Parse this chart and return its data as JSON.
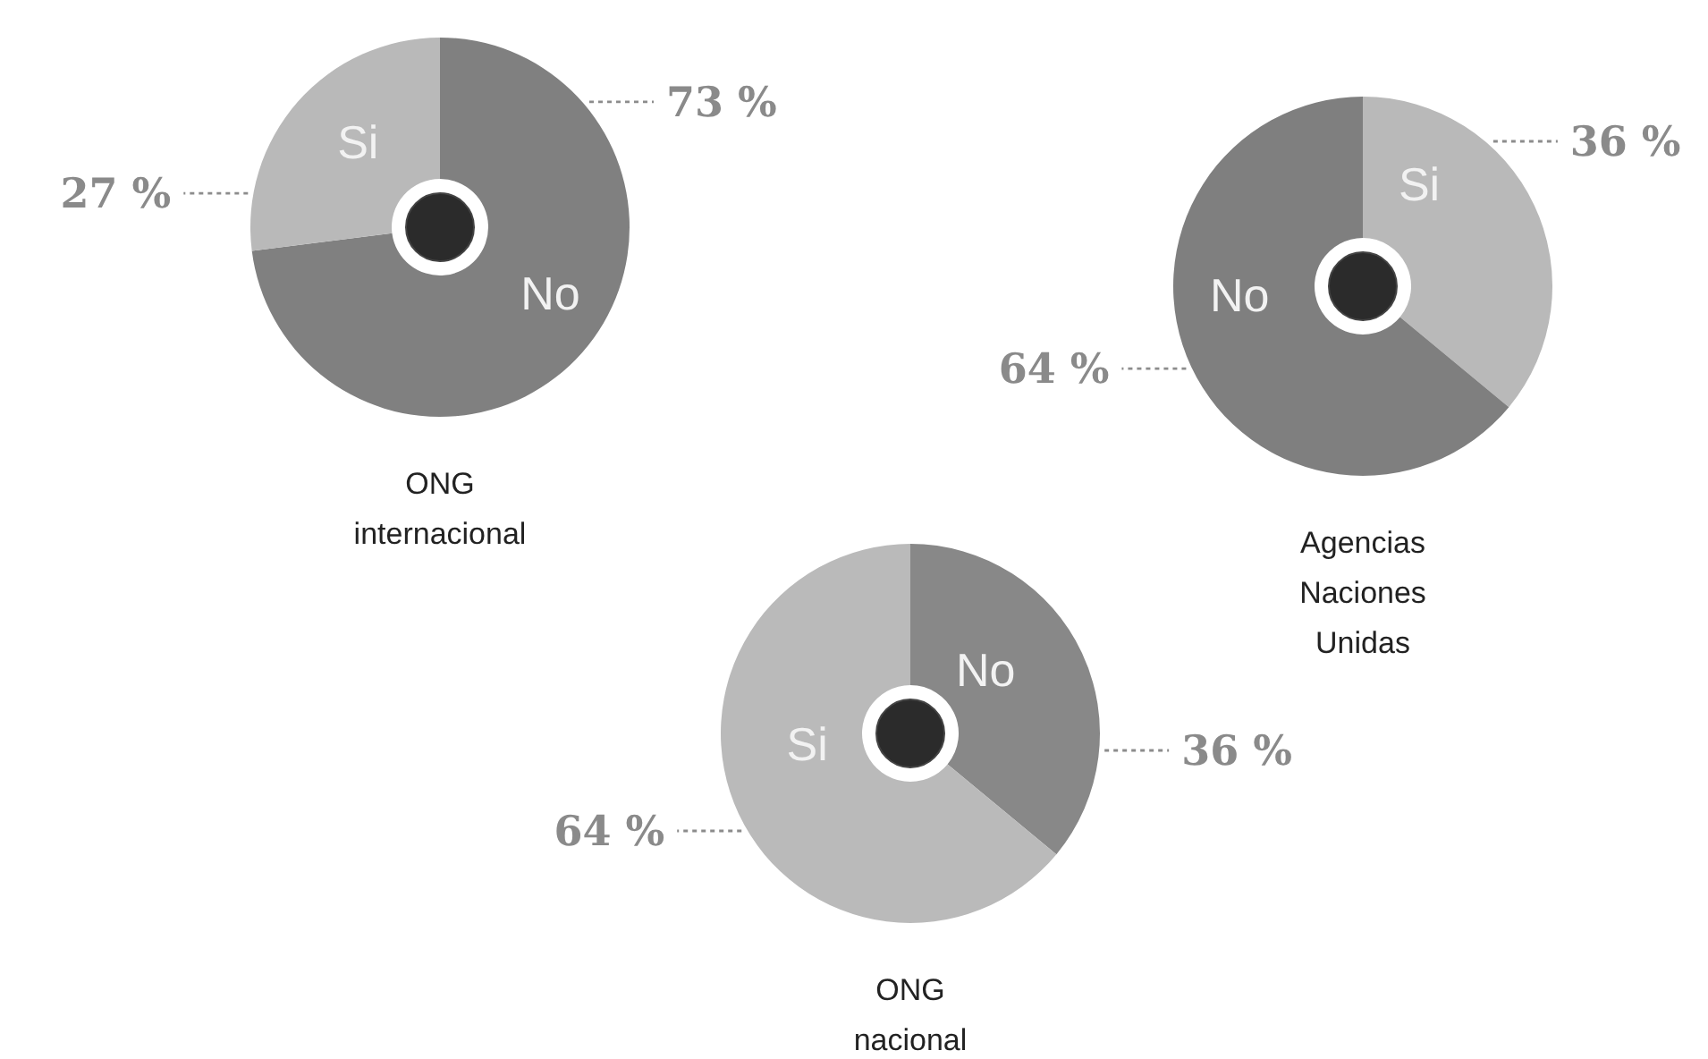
{
  "chart_data": [
    {
      "type": "donut",
      "title": "ONG internacional",
      "categories": [
        "No",
        "Si"
      ],
      "values": [
        73,
        27
      ],
      "colors": [
        "#808080",
        "#b9b9b9"
      ],
      "value_labels": [
        "73 %",
        "27 %"
      ]
    },
    {
      "type": "donut",
      "title": "Agencias Naciones Unidas",
      "categories": [
        "Si",
        "No"
      ],
      "values": [
        36,
        64
      ],
      "colors": [
        "#b9b9b9",
        "#7f7f7f"
      ],
      "value_labels": [
        "36 %",
        "64 %"
      ]
    },
    {
      "type": "donut",
      "title": "ONG nacional",
      "categories": [
        "No",
        "Si"
      ],
      "values": [
        36,
        64
      ],
      "colors": [
        "#888888",
        "#bababa"
      ],
      "value_labels": [
        "36 %",
        "64 %"
      ]
    }
  ]
}
